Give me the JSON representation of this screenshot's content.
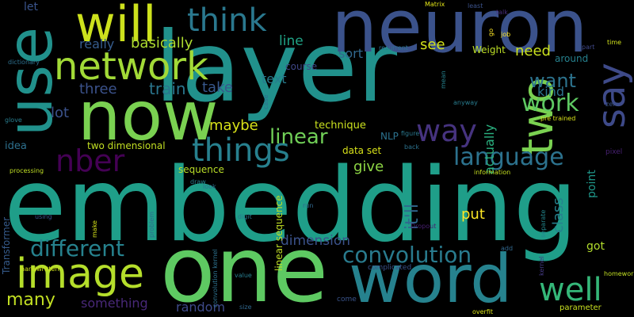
{
  "words": [
    {
      "text": "layer",
      "color": "#21918c"
    },
    {
      "text": "embedding",
      "color": "#1f9e89"
    },
    {
      "text": "neuron",
      "color": "#3b528b"
    },
    {
      "text": "one",
      "color": "#5ec962"
    },
    {
      "text": "now",
      "color": "#7ad151"
    },
    {
      "text": "use",
      "color": "#21918c"
    },
    {
      "text": "word",
      "color": "#26828e"
    },
    {
      "text": "will",
      "color": "#cde11d"
    },
    {
      "text": "network",
      "color": "#a2da37"
    },
    {
      "text": "think",
      "color": "#2a788e"
    },
    {
      "text": "two",
      "color": "#7ad151"
    },
    {
      "text": "say",
      "color": "#3e4a89"
    },
    {
      "text": "image",
      "color": "#b5de2b"
    },
    {
      "text": "things",
      "color": "#27808e"
    },
    {
      "text": "way",
      "color": "#46337f"
    },
    {
      "text": "nber",
      "color": "#440154"
    },
    {
      "text": "well",
      "color": "#35b779"
    },
    {
      "text": "language",
      "color": "#2c728e"
    },
    {
      "text": "convolution",
      "color": "#297b8e"
    },
    {
      "text": "different",
      "color": "#26828e"
    },
    {
      "text": "linear",
      "color": "#70cf57"
    },
    {
      "text": "work",
      "color": "#5ec962"
    },
    {
      "text": "want",
      "color": "#2c738e"
    },
    {
      "text": "many",
      "color": "#c2df23"
    },
    {
      "text": "it'll",
      "color": "#31688e"
    },
    {
      "text": "train",
      "color": "#2a768e"
    },
    {
      "text": "three",
      "color": "#3b528b"
    },
    {
      "text": "basically",
      "color": "#addc30"
    },
    {
      "text": "really",
      "color": "#365c8d"
    },
    {
      "text": "lot",
      "color": "#3b528b"
    },
    {
      "text": "take",
      "color": "#38588c"
    },
    {
      "text": "maybe",
      "color": "#d8e219"
    },
    {
      "text": "line",
      "color": "#20a386"
    },
    {
      "text": "see",
      "color": "#d2e21b"
    },
    {
      "text": "sort",
      "color": "#31688e"
    },
    {
      "text": "text",
      "color": "#287c8e"
    },
    {
      "text": "need",
      "color": "#cae11f"
    },
    {
      "text": "kind",
      "color": "#2c738e"
    },
    {
      "text": "actually",
      "color": "#2ab07f"
    },
    {
      "text": "give",
      "color": "#8ed645"
    },
    {
      "text": "class",
      "color": "#26828e"
    },
    {
      "text": "put",
      "color": "#fde725"
    },
    {
      "text": "dimension",
      "color": "#3b528b"
    },
    {
      "text": "something",
      "color": "#482878"
    },
    {
      "text": "random",
      "color": "#3e4a89"
    },
    {
      "text": "idea",
      "color": "#2d708e"
    },
    {
      "text": "two dimensional",
      "color": "#c2df23"
    },
    {
      "text": "technique",
      "color": "#cae11f"
    },
    {
      "text": "NLP",
      "color": "#2c728e"
    },
    {
      "text": "data set",
      "color": "#d8e219"
    },
    {
      "text": "sequence",
      "color": "#bade28"
    },
    {
      "text": "linear sequence",
      "color": "#c0df25"
    },
    {
      "text": "course",
      "color": "#3f4788"
    },
    {
      "text": "let",
      "color": "#3a548c"
    },
    {
      "text": "Weight",
      "color": "#bddf26"
    },
    {
      "text": "around",
      "color": "#26818e"
    },
    {
      "text": "point",
      "color": "#1f988b"
    },
    {
      "text": "got",
      "color": "#b2dd2d"
    },
    {
      "text": "Transformer",
      "color": "#365c8d"
    },
    {
      "text": "Matrix",
      "color": "#e2e418"
    },
    {
      "text": "least",
      "color": "#3b528b"
    },
    {
      "text": "talk",
      "color": "#472d7b"
    },
    {
      "text": "job",
      "color": "#fde725"
    },
    {
      "text": "go",
      "color": "#fde725"
    },
    {
      "text": "part",
      "color": "#3f4788"
    },
    {
      "text": "time",
      "color": "#d0e11c"
    },
    {
      "text": "dictionary",
      "color": "#2d708e"
    },
    {
      "text": "recurrent",
      "color": "#2c728e"
    },
    {
      "text": "mean",
      "color": "#26828e"
    },
    {
      "text": "anyway",
      "color": "#287c8e"
    },
    {
      "text": "case",
      "color": "#2e6e8e"
    },
    {
      "text": "zero",
      "color": "#3a548c"
    },
    {
      "text": "pre trained",
      "color": "#d8e219"
    },
    {
      "text": "glove",
      "color": "#287d8e"
    },
    {
      "text": "figure",
      "color": "#2a788e"
    },
    {
      "text": "back",
      "color": "#2c728e"
    },
    {
      "text": "information",
      "color": "#c5e021"
    },
    {
      "text": "pixel",
      "color": "#482173"
    },
    {
      "text": "processing",
      "color": "#c0df25"
    },
    {
      "text": "using",
      "color": "#3b528b"
    },
    {
      "text": "problem",
      "color": "#2e6d8e"
    },
    {
      "text": "look",
      "color": "#2c728e"
    },
    {
      "text": "draw",
      "color": "#26828e"
    },
    {
      "text": "make",
      "color": "#d5e21a"
    },
    {
      "text": "run",
      "color": "#31688e"
    },
    {
      "text": "digit",
      "color": "#2a768e"
    },
    {
      "text": "separate",
      "color": "#23888e"
    },
    {
      "text": "Dropout",
      "color": "#481f70"
    },
    {
      "text": "handwritten",
      "color": "#d2e21b"
    },
    {
      "text": "convolution kernel",
      "color": "#2d718e"
    },
    {
      "text": "add",
      "color": "#31688e"
    },
    {
      "text": "kernel",
      "color": "#443a83"
    },
    {
      "text": "homework",
      "color": "#c2df23"
    },
    {
      "text": "complicated",
      "color": "#3b528b"
    },
    {
      "text": "value",
      "color": "#287c8e"
    },
    {
      "text": "come",
      "color": "#3a548c"
    },
    {
      "text": "size",
      "color": "#31688e"
    },
    {
      "text": "parameter",
      "color": "#c8e020"
    },
    {
      "text": "overfit",
      "color": "#d8e219"
    }
  ]
}
